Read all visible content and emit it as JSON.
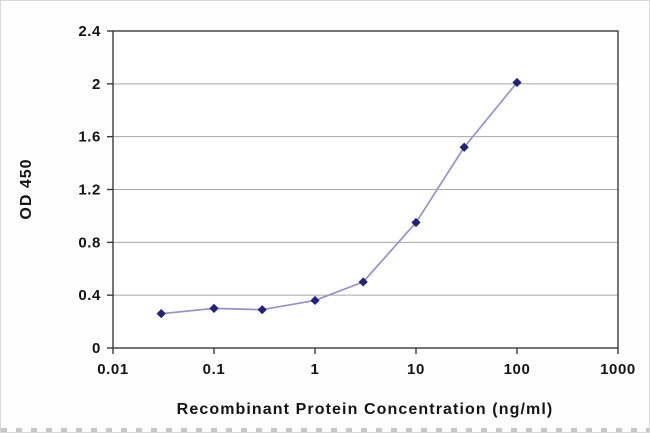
{
  "chart_data": {
    "type": "line",
    "x_scale": "log",
    "x": [
      0.03,
      0.1,
      0.3,
      1,
      3,
      10,
      30,
      100
    ],
    "y": [
      0.26,
      0.3,
      0.29,
      0.36,
      0.5,
      0.95,
      1.52,
      2.01
    ],
    "title": "",
    "xlabel": "Recombinant Protein Concentration (ng/ml)",
    "ylabel": "OD 450",
    "xlim": [
      0.01,
      1000
    ],
    "ylim": [
      0,
      2.4
    ],
    "x_ticks": [
      0.01,
      0.1,
      1,
      10,
      100,
      1000
    ],
    "x_tick_labels": [
      "0.01",
      "0.1",
      "1",
      "10",
      "100",
      "1000"
    ],
    "y_ticks": [
      0,
      0.4,
      0.8,
      1.2,
      1.6,
      2,
      2.4
    ],
    "y_tick_labels": [
      "0",
      "0.4",
      "0.8",
      "1.2",
      "1.6",
      "2",
      "2.4"
    ],
    "grid": "horizontal",
    "legend": "none",
    "marker_shape": "diamond",
    "colors": {
      "line": "#9592C9",
      "marker": "#24217A",
      "grid": "#A6A6A6",
      "axis": "#3B3B3B",
      "text": "#141414",
      "background": "#FFFFFF"
    }
  }
}
